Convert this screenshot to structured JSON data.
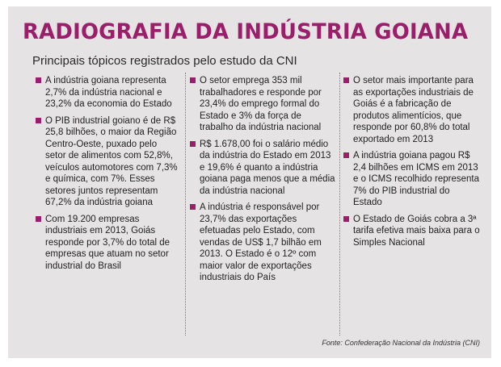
{
  "title": "RADIOGRAFIA DA INDÚSTRIA GOIANA",
  "subtitle": "Principais tópicos registrados pelo estudo da CNI",
  "columns": [
    {
      "items": [
        "A indústria goiana representa 2,7% da indústria nacional e 23,2% da economia do Estado",
        "O PIB industrial goiano é de R$ 25,8 bilhões, o maior da Região Centro-Oeste, puxado pelo setor de alimentos com 52,8%, veículos automotores com 7,3% e química, com 7%. Esses setores juntos representam 67,2% da indústria goiana",
        "Com 19.200 empresas industriais em 2013, Goiás responde por 3,7% do total de empresas que atuam no setor industrial do Brasil"
      ]
    },
    {
      "items": [
        "O setor emprega 353 mil trabalhadores e responde por 23,4% do emprego formal do Estado e 3% da força de trabalho da indústria nacional",
        "R$ 1.678,00 foi o salário médio da indústria do Estado em 2013 e 19,6% é quanto a indústria goiana paga menos que a média da indústria nacional",
        "A indústria é responsável por 23,7% das exportações efetuadas pelo Estado, com vendas de US$ 1,7 bilhão em 2013. O Estado é o 12º com maior valor de exportações industriais do País"
      ]
    },
    {
      "items": [
        "O setor mais importante para as exportações industriais de Goiás é a fabricação de produtos alimentícios, que responde por 60,8% do total exportado em 2013",
        "A indústria goiana pagou R$ 2,4 bilhões em ICMS em 2013 e o ICMS recolhido representa 7% do PIB industrial do Estado",
        "O Estado de Goiás cobra a 3ª tarifa efetiva mais baixa para o Simples Nacional"
      ]
    }
  ],
  "source": "Fonte: Confederação Nacional da Indústria (CNI)",
  "colors": {
    "accent": "#9b1e6a",
    "panel": "#e6e3e4"
  }
}
